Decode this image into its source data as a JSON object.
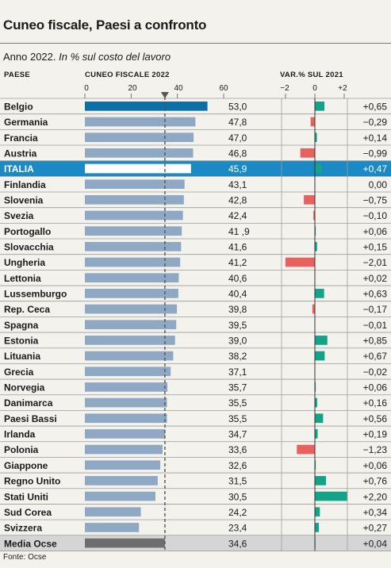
{
  "title": "Cuneo fiscale, Paesi a confronto",
  "subtitle_year": "Anno 2022.",
  "subtitle_unit": "In % sul costo del lavoro",
  "source": "Fonte: Ocse",
  "colors": {
    "belgio_bar": "#0d6fa6",
    "bar": "#8fa9c4",
    "highlight_row": "#1b8ac4",
    "ocse_bar": "#6d6d6d",
    "ocse_row": "#d5d5d5",
    "positive": "#13a389",
    "negative": "#e8615f"
  },
  "chart_data": [
    {
      "type": "bar",
      "orientation": "horizontal",
      "xlabel": "CUNEO FISCALE 2022",
      "category_label": "PAESE",
      "xlim": [
        0,
        60
      ],
      "ticks": [
        "0",
        "20",
        "40",
        "60"
      ],
      "reference_line": 34.6,
      "categories": [
        "Belgio",
        "Germania",
        "Francia",
        "Austria",
        "ITALIA",
        "Finlandia",
        "Slovenia",
        "Svezia",
        "Portogallo",
        "Slovacchia",
        "Ungheria",
        "Lettonia",
        "Lussemburgo",
        "Rep. Ceca",
        "Spagna",
        "Estonia",
        "Lituania",
        "Grecia",
        "Norvegia",
        "Danimarca",
        "Paesi Bassi",
        "Irlanda",
        "Polonia",
        "Giappone",
        "Regno Unito",
        "Stati Uniti",
        "Sud Corea",
        "Svizzera",
        "Media Ocse"
      ],
      "values": [
        53.0,
        47.8,
        47.0,
        46.8,
        45.9,
        43.1,
        42.8,
        42.4,
        41.9,
        41.6,
        41.2,
        40.6,
        40.4,
        39.8,
        39.5,
        39.0,
        38.2,
        37.1,
        35.7,
        35.5,
        35.5,
        34.7,
        33.6,
        32.6,
        31.5,
        30.5,
        24.2,
        23.4,
        34.6
      ],
      "labels": [
        "53,0",
        "47,8",
        "47,0",
        "46,8",
        "45,9",
        "43,1",
        "42,8",
        "42,4",
        "41 ,9",
        "41,6",
        "41,2",
        "40,6",
        "40,4",
        "39,8",
        "39,5",
        "39,0",
        "38,2",
        "37,1",
        "35,7",
        "35,5",
        "35,5",
        "34,7",
        "33,6",
        "32,6",
        "31,5",
        "30,5",
        "24,2",
        "23,4",
        "34,6"
      ]
    },
    {
      "type": "bar",
      "orientation": "horizontal",
      "xlabel": "VAR.% SUL 2021",
      "xlim": [
        -2.2,
        2.2
      ],
      "ticks": [
        "−2",
        "0",
        "+2"
      ],
      "values": [
        0.65,
        -0.29,
        0.14,
        -0.99,
        0.47,
        0.0,
        -0.75,
        -0.1,
        0.06,
        0.15,
        -2.01,
        0.02,
        0.63,
        -0.17,
        -0.01,
        0.85,
        0.67,
        -0.02,
        0.06,
        0.16,
        0.56,
        0.19,
        -1.23,
        0.06,
        0.76,
        2.2,
        0.34,
        0.27,
        0.04
      ],
      "labels": [
        "+0,65",
        "−0,29",
        "+0,14",
        "−0,99",
        "+0,47",
        "0,00",
        "−0,75",
        "−0,10",
        "+0,06",
        "+0,15",
        "−2,01",
        "+0,02",
        "+0,63",
        "−0,17",
        "−0,01",
        "+0,85",
        "+0,67",
        "−0,02",
        "+0,06",
        "+0,16",
        "+0,56",
        "+0,19",
        "−1,23",
        "+0,06",
        "+0,76",
        "+2,20",
        "+0,34",
        "+0,27",
        "+0,04"
      ]
    }
  ]
}
